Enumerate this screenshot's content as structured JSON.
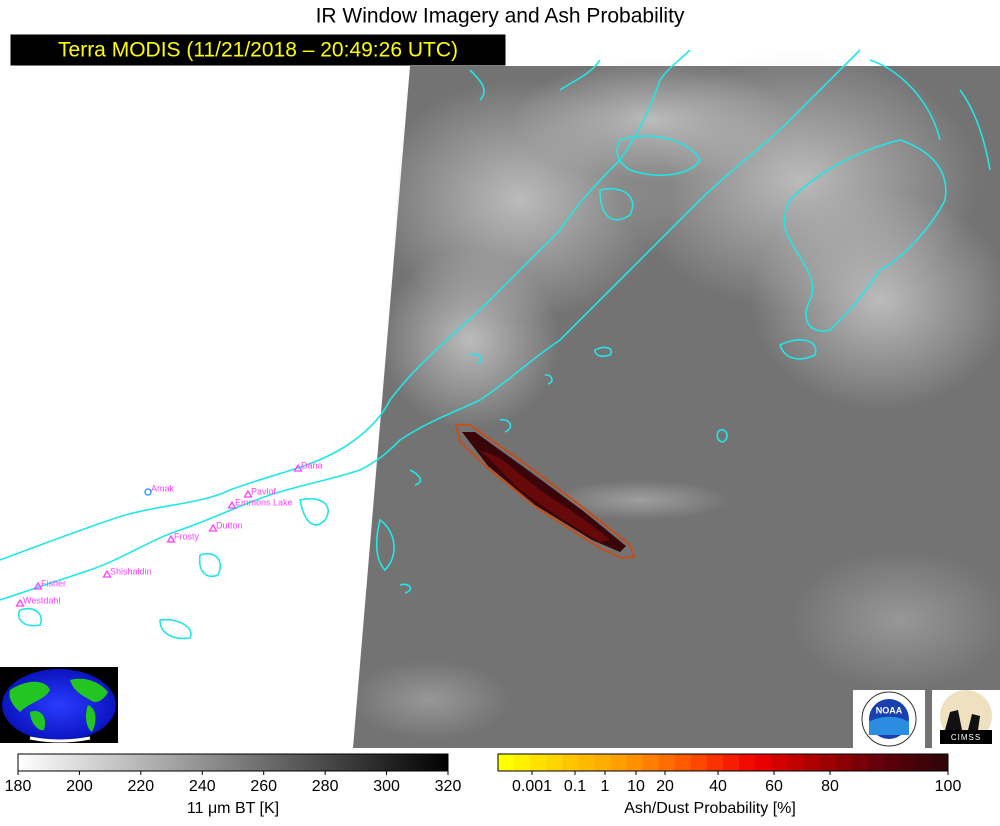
{
  "header": {
    "title": "IR Window Imagery and Ash Probability",
    "subtitle": "Terra MODIS (11/21/2018 – 20:49:26 UTC)"
  },
  "map": {
    "volcanoes": [
      {
        "name": "Amak"
      },
      {
        "name": "Dana"
      },
      {
        "name": "Pavlof"
      },
      {
        "name": "Emmons Lake"
      },
      {
        "name": "Dutton"
      },
      {
        "name": "Frosty"
      },
      {
        "name": "Shishaldin"
      },
      {
        "name": "Fisher"
      },
      {
        "name": "Westdahl"
      }
    ]
  },
  "colorbars": [
    {
      "label": "11 μm BT [K]",
      "lim": [
        180,
        320
      ],
      "ticks": [
        180,
        200,
        220,
        240,
        260,
        280,
        300,
        320
      ]
    },
    {
      "label": "Ash/Dust Probability [%]",
      "ticks": [
        0.001,
        0.1,
        1,
        10,
        20,
        40,
        60,
        80,
        100
      ]
    }
  ],
  "logos": {
    "noaa": "NOAA",
    "cimss": "CIMSS"
  }
}
